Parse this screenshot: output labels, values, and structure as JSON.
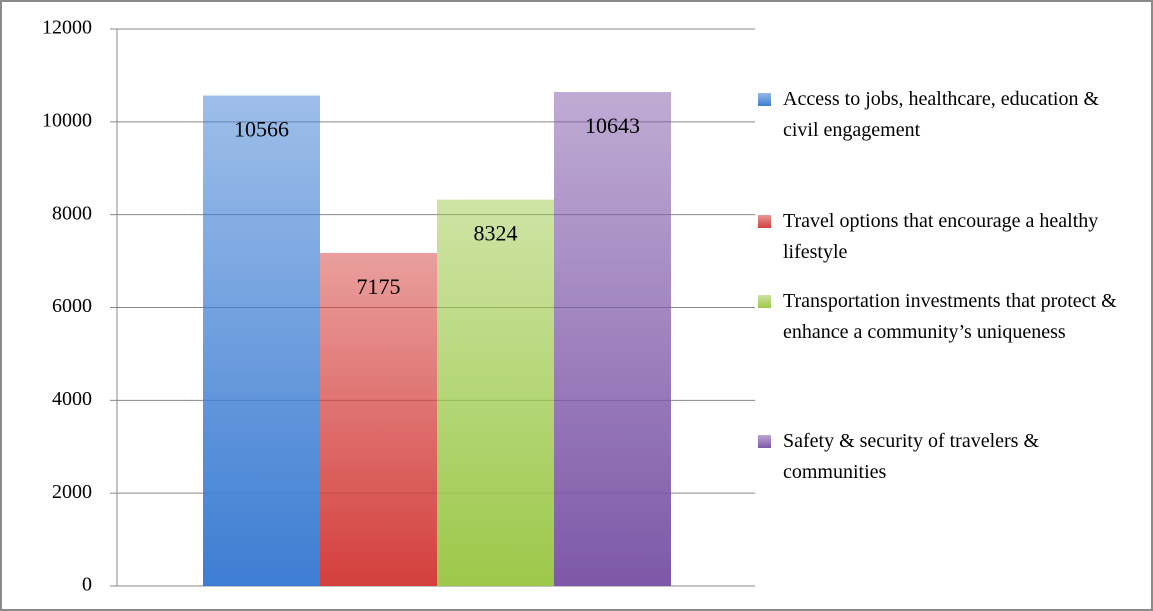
{
  "chart_data": {
    "type": "bar",
    "categories": [
      null
    ],
    "series": [
      {
        "name": "Access to jobs, healthcare, education & civil engagement",
        "color": "#3d7dd3",
        "values": [
          10566
        ]
      },
      {
        "name": "Travel options that encourage a healthy lifestyle",
        "color": "#d33f3c",
        "values": [
          7175
        ]
      },
      {
        "name": "Transportation investments that protect & enhance a community’s uniqueness",
        "color": "#9cc84a",
        "values": [
          8324
        ]
      },
      {
        "name": "Safety & security of travelers & communities",
        "color": "#7e58a8",
        "values": [
          10643
        ]
      }
    ],
    "ylim": [
      0,
      12000
    ],
    "yticks": [
      0,
      2000,
      4000,
      6000,
      8000,
      10000,
      12000
    ],
    "grid": true,
    "legend": "right"
  }
}
